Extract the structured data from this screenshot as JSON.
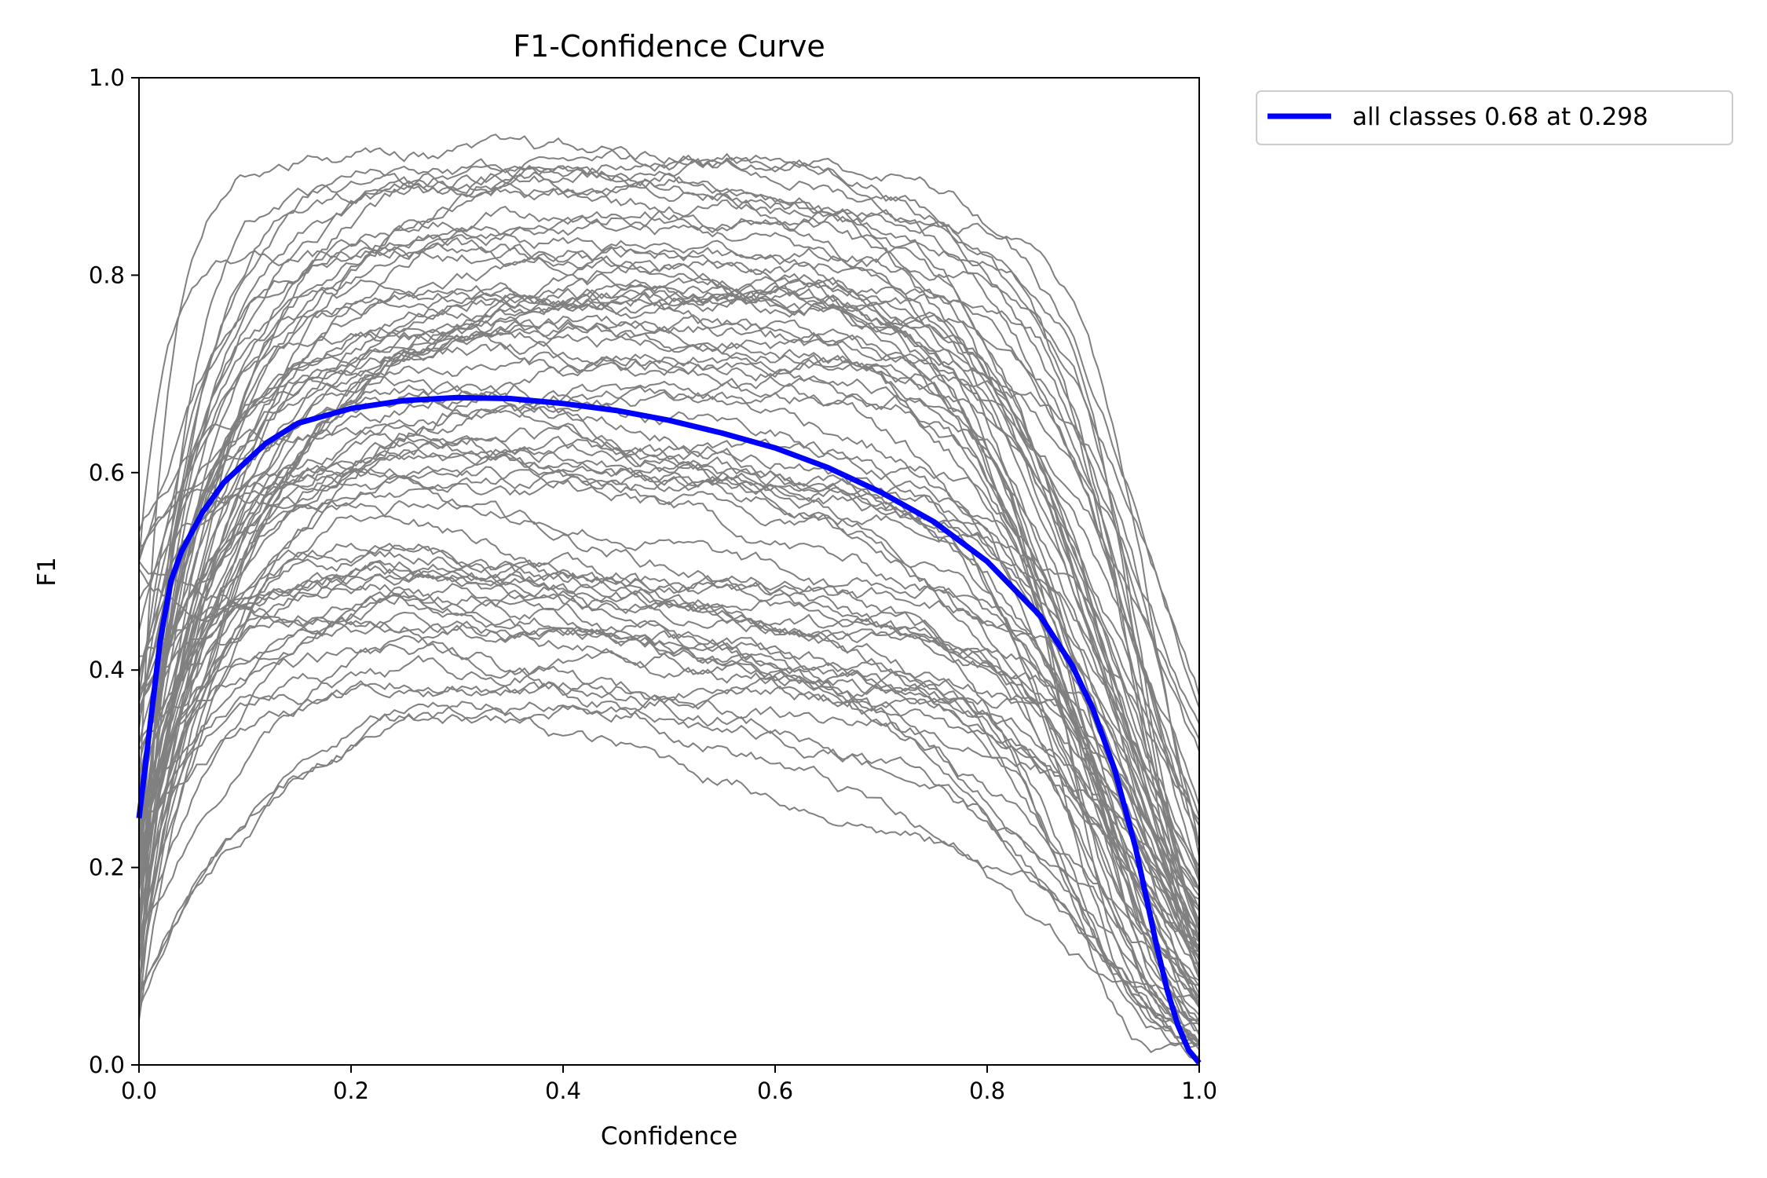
{
  "chart_data": {
    "type": "line",
    "title": "F1-Confidence Curve",
    "xlabel": "Confidence",
    "ylabel": "F1",
    "xlim": [
      0.0,
      1.0
    ],
    "ylim": [
      0.0,
      1.0
    ],
    "x_ticks": [
      "0.0",
      "0.2",
      "0.4",
      "0.6",
      "0.8",
      "1.0"
    ],
    "y_ticks": [
      "0.0",
      "0.2",
      "0.4",
      "0.6",
      "0.8",
      "1.0"
    ],
    "grid": false,
    "legend_position": "outside top-right",
    "colors": {
      "per_class": "#808080",
      "all_classes": "#0000ff",
      "axes": "#000000"
    },
    "all_classes": {
      "name": "all classes 0.68 at 0.298",
      "x": [
        0.0,
        0.01,
        0.02,
        0.03,
        0.04,
        0.06,
        0.08,
        0.1,
        0.12,
        0.15,
        0.2,
        0.25,
        0.3,
        0.35,
        0.4,
        0.45,
        0.5,
        0.55,
        0.6,
        0.65,
        0.7,
        0.75,
        0.8,
        0.85,
        0.88,
        0.9,
        0.92,
        0.94,
        0.95,
        0.96,
        0.97,
        0.98,
        0.99,
        1.0
      ],
      "values": [
        0.25,
        0.34,
        0.43,
        0.49,
        0.52,
        0.56,
        0.59,
        0.61,
        0.63,
        0.65,
        0.665,
        0.673,
        0.676,
        0.675,
        0.67,
        0.663,
        0.653,
        0.64,
        0.625,
        0.605,
        0.58,
        0.55,
        0.51,
        0.455,
        0.405,
        0.36,
        0.3,
        0.22,
        0.17,
        0.12,
        0.075,
        0.04,
        0.015,
        0.002
      ]
    },
    "per_class_series_count": 80
  }
}
